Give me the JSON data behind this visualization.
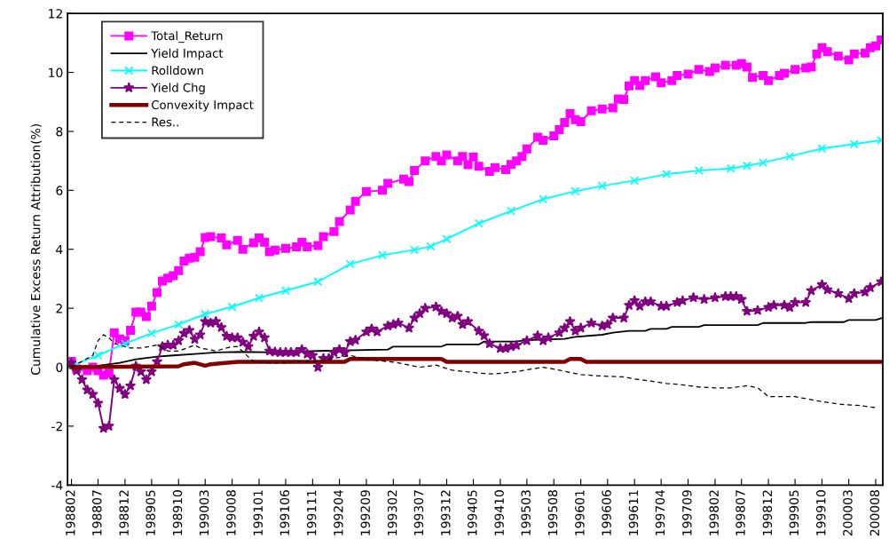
{
  "chart_data": {
    "type": "line",
    "ylabel": "Cumulative Excess Return Attribution(%)",
    "ylim": [
      -4,
      12
    ],
    "yticks": [
      -4,
      -2,
      0,
      2,
      4,
      6,
      8,
      10,
      12
    ],
    "xlim": [
      "1988-01-10",
      "2000-09-10"
    ],
    "xticks": [
      {
        "value": "1988-02",
        "label": "198802"
      },
      {
        "value": "1988-07",
        "label": "198807"
      },
      {
        "value": "1988-12",
        "label": "198812"
      },
      {
        "value": "1989-05",
        "label": "198905"
      },
      {
        "value": "1989-10",
        "label": "198910"
      },
      {
        "value": "1990-03",
        "label": "199003"
      },
      {
        "value": "1990-08",
        "label": "199008"
      },
      {
        "value": "1991-01",
        "label": "199101"
      },
      {
        "value": "1991-06",
        "label": "199106"
      },
      {
        "value": "1991-11",
        "label": "199111"
      },
      {
        "value": "1992-04",
        "label": "199204"
      },
      {
        "value": "1992-09",
        "label": "199209"
      },
      {
        "value": "1993-02",
        "label": "199302"
      },
      {
        "value": "1993-07",
        "label": "199307"
      },
      {
        "value": "1993-12",
        "label": "199312"
      },
      {
        "value": "1994-05",
        "label": "199405"
      },
      {
        "value": "1994-10",
        "label": "199410"
      },
      {
        "value": "1995-03",
        "label": "199503"
      },
      {
        "value": "1995-08",
        "label": "199508"
      },
      {
        "value": "1996-01",
        "label": "199601"
      },
      {
        "value": "1996-06",
        "label": "199606"
      },
      {
        "value": "1996-11",
        "label": "199611"
      },
      {
        "value": "1997-04",
        "label": "199704"
      },
      {
        "value": "1997-09",
        "label": "199709"
      },
      {
        "value": "1998-02",
        "label": "199802"
      },
      {
        "value": "1998-07",
        "label": "199807"
      },
      {
        "value": "1998-12",
        "label": "199812"
      },
      {
        "value": "1999-05",
        "label": "199905"
      },
      {
        "value": "1999-10",
        "label": "199910"
      },
      {
        "value": "2000-03",
        "label": "200003"
      },
      {
        "value": "2000-08",
        "label": "200008"
      }
    ],
    "grid": false,
    "legend": "top left",
    "series": [
      {
        "name": "Total_Return",
        "color": "#ff00ff",
        "marker": "square",
        "line_style": "solid",
        "x": [
          "1988-02",
          "1988-03",
          "1988-05",
          "1988-06",
          "1988-07",
          "1988-08",
          "1988-09",
          "1988-10",
          "1988-11",
          "1988-12",
          "1989-01",
          "1989-02",
          "1989-03",
          "1989-04",
          "1989-05",
          "1989-06",
          "1989-07",
          "1989-08",
          "1989-09",
          "1989-10",
          "1989-11",
          "1989-12",
          "1990-01",
          "1990-02",
          "1990-03",
          "1990-04",
          "1990-06",
          "1990-07",
          "1990-09",
          "1990-10",
          "1990-12",
          "1991-01",
          "1991-02",
          "1991-03",
          "1991-04",
          "1991-06",
          "1991-08",
          "1991-09",
          "1991-10",
          "1991-12",
          "1992-01",
          "1992-03",
          "1992-04",
          "1992-06",
          "1992-07",
          "1992-09",
          "1992-12",
          "1993-01",
          "1993-04",
          "1993-05",
          "1993-06",
          "1993-08",
          "1993-10",
          "1993-11",
          "1993-12",
          "1994-02",
          "1994-03",
          "1994-04",
          "1994-05",
          "1994-06",
          "1994-08",
          "1994-09",
          "1994-11",
          "1994-12",
          "1995-01",
          "1995-02",
          "1995-03",
          "1995-05",
          "1995-06",
          "1995-08",
          "1995-09",
          "1995-10",
          "1995-11",
          "1995-12",
          "1996-01",
          "1996-03",
          "1996-05",
          "1996-07",
          "1996-08",
          "1996-09",
          "1996-10",
          "1996-11",
          "1996-12",
          "1997-01",
          "1997-03",
          "1997-04",
          "1997-06",
          "1997-07",
          "1997-09",
          "1997-11",
          "1998-01",
          "1998-02",
          "1998-04",
          "1998-06",
          "1998-07",
          "1998-08",
          "1998-09",
          "1998-11",
          "1998-12",
          "1999-02",
          "1999-03",
          "1999-05",
          "1999-07",
          "1999-08",
          "1999-09",
          "1999-10",
          "1999-11",
          "2000-01",
          "2000-03",
          "2000-04",
          "2000-06",
          "2000-07",
          "2000-08",
          "2000-09"
        ],
        "values": [
          0.2,
          -0.06,
          -0.12,
          0,
          -0.12,
          -0.27,
          -0.2,
          1.17,
          0.96,
          0.9,
          1.25,
          1.87,
          1.87,
          1.72,
          2.07,
          2.53,
          2.92,
          3.02,
          3.1,
          3.28,
          3.6,
          3.7,
          3.73,
          3.92,
          4.4,
          4.43,
          4.38,
          4.15,
          4.3,
          4.0,
          4.22,
          4.38,
          4.24,
          3.92,
          3.97,
          4.03,
          4.08,
          4.24,
          4.08,
          4.13,
          4.43,
          4.6,
          4.94,
          5.33,
          5.63,
          5.96,
          6.0,
          6.24,
          6.38,
          6.3,
          6.67,
          7.0,
          7.15,
          7.0,
          7.2,
          7.0,
          7.15,
          6.87,
          7.13,
          6.82,
          6.64,
          6.77,
          6.7,
          6.88,
          7.0,
          7.15,
          7.4,
          7.8,
          7.7,
          7.85,
          8.06,
          8.3,
          8.6,
          8.4,
          8.33,
          8.7,
          8.76,
          8.8,
          9.1,
          9.08,
          9.54,
          9.72,
          9.56,
          9.72,
          9.85,
          9.65,
          9.72,
          9.9,
          9.94,
          10.1,
          10.03,
          10.15,
          10.24,
          10.24,
          10.3,
          10.18,
          9.83,
          9.9,
          9.72,
          9.9,
          9.97,
          10.1,
          10.15,
          10.18,
          10.63,
          10.84,
          10.7,
          10.55,
          10.42,
          10.63,
          10.66,
          10.84,
          10.9,
          11.1
        ]
      },
      {
        "name": "Yield Impact",
        "color": "#000000",
        "marker": "none",
        "line_style": "solid",
        "x": [
          "1988-02",
          "1988-07",
          "1988-11",
          "1989-02",
          "1989-06",
          "1989-09",
          "1990-01",
          "1990-05",
          "1990-10",
          "1991-04",
          "1991-12",
          "1993-01",
          "1993-02",
          "1993-11",
          "1993-12",
          "1994-06",
          "1994-07",
          "1995-01",
          "1995-03",
          "1995-10",
          "1995-12",
          "1996-05",
          "1996-07",
          "1996-10",
          "1997-01",
          "1997-02",
          "1997-05",
          "1997-06",
          "1997-11",
          "1997-12",
          "1998-10",
          "1998-11",
          "1999-07",
          "1999-08",
          "2000-02",
          "2000-03",
          "2000-08",
          "2000-09"
        ],
        "values": [
          0,
          0.05,
          0.15,
          0.27,
          0.36,
          0.4,
          0.45,
          0.5,
          0.52,
          0.5,
          0.55,
          0.6,
          0.7,
          0.7,
          0.77,
          0.77,
          0.87,
          0.87,
          0.92,
          0.96,
          1.03,
          1.1,
          1.17,
          1.23,
          1.23,
          1.3,
          1.3,
          1.37,
          1.37,
          1.43,
          1.43,
          1.5,
          1.5,
          1.53,
          1.53,
          1.6,
          1.6,
          1.66
        ]
      },
      {
        "name": "Rolldown",
        "color": "#00ffff",
        "marker": "cross",
        "line_style": "solid",
        "x": [
          "1988-02",
          "1988-07",
          "1988-12",
          "1989-05",
          "1989-10",
          "1990-03",
          "1990-08",
          "1991-01",
          "1991-06",
          "1991-12",
          "1992-06",
          "1992-12",
          "1993-06",
          "1993-09",
          "1993-12",
          "1994-06",
          "1994-12",
          "1995-06",
          "1995-12",
          "1996-05",
          "1996-11",
          "1997-05",
          "1997-11",
          "1998-05",
          "1998-08",
          "1998-11",
          "1999-04",
          "1999-10",
          "2000-04",
          "2000-09"
        ],
        "values": [
          0.05,
          0.4,
          0.8,
          1.15,
          1.45,
          1.8,
          2.05,
          2.35,
          2.6,
          2.9,
          3.5,
          3.8,
          3.98,
          4.1,
          4.35,
          4.88,
          5.3,
          5.7,
          5.97,
          6.15,
          6.33,
          6.55,
          6.67,
          6.74,
          6.83,
          6.94,
          7.15,
          7.42,
          7.57,
          7.7
        ]
      },
      {
        "name": "Yield Chg",
        "color": "#800080",
        "marker": "star",
        "line_style": "solid",
        "x": [
          "1988-02",
          "1988-03",
          "1988-04",
          "1988-05",
          "1988-06",
          "1988-07",
          "1988-08",
          "1988-09",
          "1988-10",
          "1988-11",
          "1988-12",
          "1989-01",
          "1989-02",
          "1989-03",
          "1989-04",
          "1989-05",
          "1989-06",
          "1989-07",
          "1989-08",
          "1989-09",
          "1989-10",
          "1989-11",
          "1989-12",
          "1990-01",
          "1990-02",
          "1990-03",
          "1990-04",
          "1990-05",
          "1990-06",
          "1990-07",
          "1990-08",
          "1990-09",
          "1990-10",
          "1990-11",
          "1990-12",
          "1991-01",
          "1991-02",
          "1991-03",
          "1991-04",
          "1991-05",
          "1991-06",
          "1991-07",
          "1991-08",
          "1991-09",
          "1991-10",
          "1991-11",
          "1991-12",
          "1992-01",
          "1992-02",
          "1992-03",
          "1992-04",
          "1992-05",
          "1992-06",
          "1992-07",
          "1992-09",
          "1992-10",
          "1992-11",
          "1993-01",
          "1993-02",
          "1993-03",
          "1993-05",
          "1993-06",
          "1993-07",
          "1993-08",
          "1993-10",
          "1993-11",
          "1993-12",
          "1994-01",
          "1994-02",
          "1994-03",
          "1994-04",
          "1994-06",
          "1994-07",
          "1994-08",
          "1994-10",
          "1994-11",
          "1994-12",
          "1995-01",
          "1995-03",
          "1995-05",
          "1995-06",
          "1995-07",
          "1995-09",
          "1995-10",
          "1995-11",
          "1995-12",
          "1996-01",
          "1996-03",
          "1996-05",
          "1996-06",
          "1996-07",
          "1996-09",
          "1996-10",
          "1996-11",
          "1996-12",
          "1997-01",
          "1997-02",
          "1997-04",
          "1997-05",
          "1997-07",
          "1997-08",
          "1997-10",
          "1997-12",
          "1998-02",
          "1998-04",
          "1998-05",
          "1998-06",
          "1998-07",
          "1998-08",
          "1998-10",
          "1998-12",
          "1999-01",
          "1999-03",
          "1999-04",
          "1999-05",
          "1999-07",
          "1999-08",
          "1999-10",
          "1999-11",
          "2000-01",
          "2000-03",
          "2000-04",
          "2000-06",
          "2000-07",
          "2000-09"
        ],
        "values": [
          0.15,
          -0.12,
          -0.42,
          -0.77,
          -0.92,
          -1.22,
          -2.07,
          -2.0,
          -0.42,
          -0.72,
          -0.92,
          -0.63,
          0.04,
          -0.15,
          -0.42,
          -0.15,
          0.19,
          0.7,
          0.75,
          0.75,
          0.9,
          1.15,
          1.25,
          0.95,
          1.1,
          1.55,
          1.5,
          1.55,
          1.35,
          1.05,
          1.0,
          1.0,
          0.85,
          0.7,
          1.05,
          1.2,
          1.0,
          0.55,
          0.52,
          0.5,
          0.5,
          0.5,
          0.5,
          0.6,
          0.45,
          0.4,
          0.0,
          0.3,
          0.3,
          0.5,
          0.6,
          0.5,
          0.87,
          0.92,
          1.2,
          1.3,
          1.2,
          1.4,
          1.45,
          1.5,
          1.33,
          1.67,
          1.82,
          2.0,
          2.05,
          1.9,
          1.82,
          1.67,
          1.73,
          1.45,
          1.55,
          1.23,
          1.07,
          0.8,
          0.64,
          0.64,
          0.7,
          0.74,
          0.9,
          1.07,
          0.9,
          1.0,
          1.17,
          1.33,
          1.55,
          1.23,
          1.33,
          1.5,
          1.4,
          1.45,
          1.67,
          1.67,
          2.1,
          2.26,
          2.07,
          2.22,
          2.22,
          2.07,
          2.07,
          2.2,
          2.26,
          2.36,
          2.3,
          2.36,
          2.4,
          2.4,
          2.4,
          2.3,
          1.9,
          1.93,
          2.03,
          2.1,
          2.1,
          2.03,
          2.2,
          2.2,
          2.6,
          2.8,
          2.63,
          2.5,
          2.33,
          2.5,
          2.55,
          2.7,
          2.9
        ]
      },
      {
        "name": "Convexity Impact",
        "color": "#800000",
        "marker": "none",
        "line_style": "solid",
        "x": [
          "1988-02",
          "1989-10",
          "1989-11",
          "1990-01",
          "1990-03",
          "1990-04",
          "1990-09",
          "1992-05",
          "1992-06",
          "1993-11",
          "1993-12",
          "1995-10",
          "1995-11",
          "1996-01",
          "1996-02",
          "2000-09"
        ],
        "values": [
          0,
          0.03,
          0.1,
          0.15,
          0.05,
          0.1,
          0.18,
          0.18,
          0.28,
          0.28,
          0.18,
          0.18,
          0.28,
          0.28,
          0.18,
          0.18
        ]
      },
      {
        "name": "Res..",
        "color": "#000000",
        "marker": "none",
        "line_style": "dashed",
        "x": [
          "1988-02",
          "1988-04",
          "1988-06",
          "1988-07",
          "1988-08",
          "1988-09",
          "1988-10",
          "1989-01",
          "1989-03",
          "1989-06",
          "1989-08",
          "1989-10",
          "1990-01",
          "1990-02",
          "1990-05",
          "1990-08",
          "1990-09",
          "1990-11",
          "1990-12",
          "1991-02",
          "1991-06",
          "1991-08",
          "1991-12",
          "1992-06",
          "1992-09",
          "1993-03",
          "1993-07",
          "1993-10",
          "1994-01",
          "1994-06",
          "1994-09",
          "1995-01",
          "1995-06",
          "1995-09",
          "1996-01",
          "1996-05",
          "1996-09",
          "1996-11",
          "1997-02",
          "1997-05",
          "1997-08",
          "1997-11",
          "1998-02",
          "1998-05",
          "1998-08",
          "1998-10",
          "1998-12",
          "1999-05",
          "1999-10",
          "2000-02",
          "2000-05",
          "2000-08"
        ],
        "values": [
          0,
          0.2,
          0.4,
          0.9,
          1.1,
          1.0,
          0.8,
          0.65,
          0.65,
          0.75,
          0.55,
          0.55,
          0.75,
          0.65,
          0.55,
          0.7,
          0.7,
          0.35,
          0.2,
          0.15,
          0.15,
          0.2,
          0.2,
          0.4,
          0.27,
          0.15,
          0.0,
          0.07,
          -0.1,
          -0.2,
          -0.23,
          -0.15,
          0.0,
          -0.1,
          -0.25,
          -0.3,
          -0.33,
          -0.4,
          -0.47,
          -0.55,
          -0.6,
          -0.67,
          -0.7,
          -0.7,
          -0.63,
          -0.7,
          -1.0,
          -1.0,
          -1.17,
          -1.27,
          -1.3,
          -1.37
        ]
      }
    ]
  }
}
